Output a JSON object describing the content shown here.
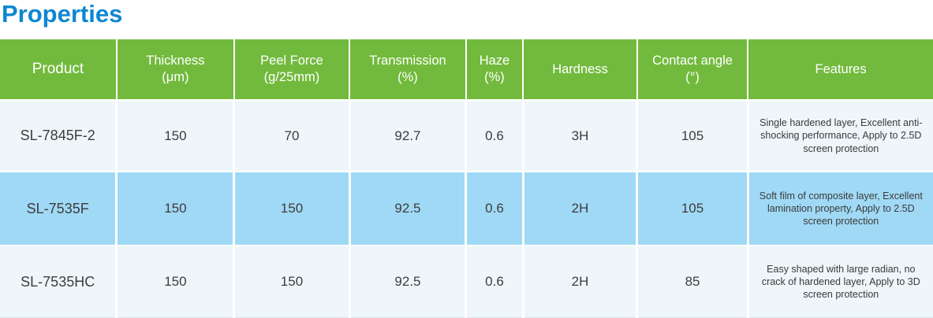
{
  "page_title": "Properties",
  "colors": {
    "title_text": "#0d87d1",
    "header_bg": "#72ba3d",
    "header_text": "#ffffff",
    "row_light_bg": "#eef6fa",
    "row_blue_bg": "#a0d9f5",
    "body_text": "#3d3d3d"
  },
  "table": {
    "columns": [
      {
        "line1": "Product",
        "line2": ""
      },
      {
        "line1": "Thickness",
        "line2": "(μm)"
      },
      {
        "line1": "Peel Force",
        "line2": "(g/25mm)"
      },
      {
        "line1": "Transmission",
        "line2": "(%)"
      },
      {
        "line1": "Haze",
        "line2": "(%)"
      },
      {
        "line1": "Hardness",
        "line2": ""
      },
      {
        "line1": "Contact angle",
        "line2": "(°)"
      },
      {
        "line1": "Features",
        "line2": ""
      }
    ],
    "rows": [
      {
        "product": "SL-7845F-2",
        "thickness": "150",
        "peel_force": "70",
        "transmission": "92.7",
        "haze": "0.6",
        "hardness": "3H",
        "contact_angle": "105",
        "features": "Single hardened layer, Excellent anti-shocking performance, Apply to 2.5D screen protection"
      },
      {
        "product": "SL-7535F",
        "thickness": "150",
        "peel_force": "150",
        "transmission": "92.5",
        "haze": "0.6",
        "hardness": "2H",
        "contact_angle": "105",
        "features": "Soft film of composite layer, Excellent lamination property, Apply to 2.5D screen protection"
      },
      {
        "product": "SL-7535HC",
        "thickness": "150",
        "peel_force": "150",
        "transmission": "92.5",
        "haze": "0.6",
        "hardness": "2H",
        "contact_angle": "85",
        "features": "Easy shaped with large radian, no crack of hardened layer, Apply to 3D screen protection"
      }
    ]
  }
}
